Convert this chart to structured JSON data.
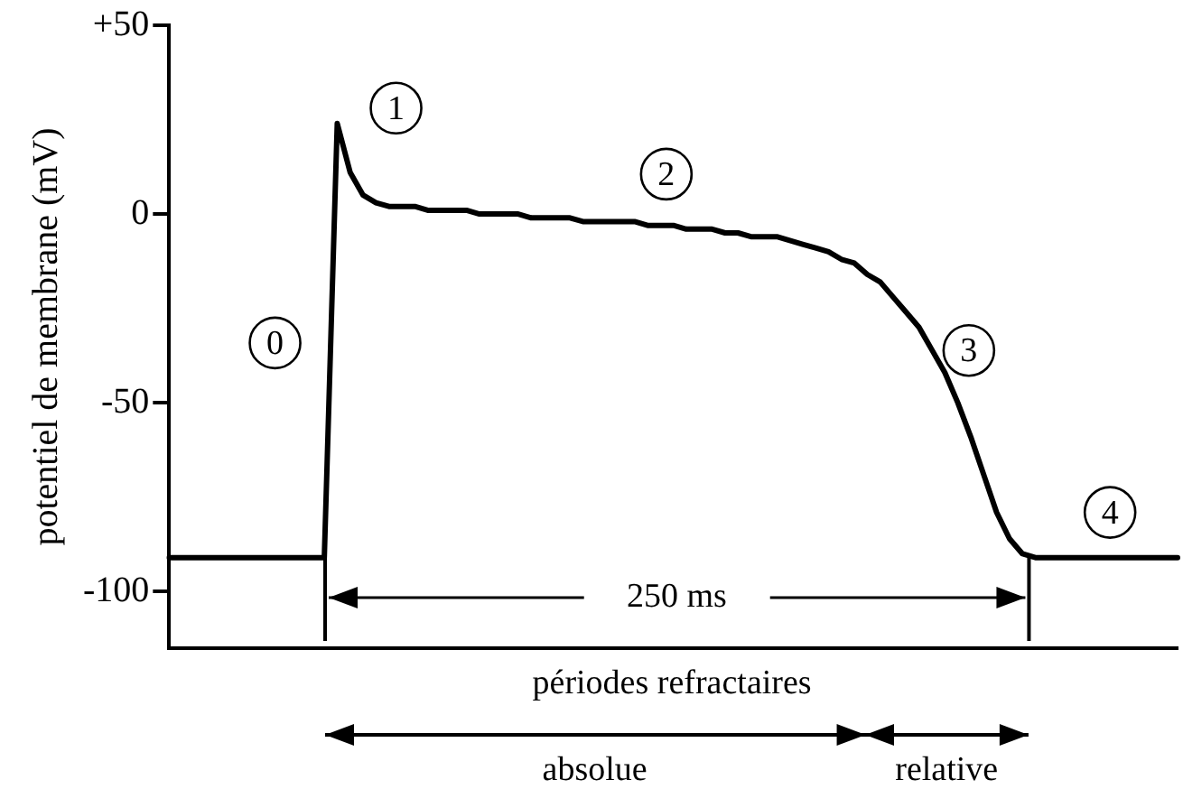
{
  "chart_data": {
    "type": "line",
    "ylabel": "potentiel de membrane (mV)",
    "categories": [
      null,
      null,
      null,
      null,
      null,
      null,
      null,
      null,
      null,
      null,
      null,
      null,
      null,
      null,
      null,
      null,
      null,
      null,
      null,
      null,
      null,
      null,
      null,
      null,
      null,
      null,
      null,
      null,
      null,
      null,
      null,
      null,
      null,
      null,
      null,
      null,
      null,
      null,
      null,
      null,
      null,
      null,
      null,
      null,
      null,
      null,
      null,
      null,
      null,
      null,
      null,
      null,
      null,
      null,
      null,
      null,
      null,
      null,
      null,
      null,
      null,
      null,
      null,
      null,
      null,
      null,
      null,
      null,
      null,
      null,
      null,
      null,
      null,
      null,
      null,
      null,
      null,
      null,
      null
    ],
    "series": [
      {
        "color": "#000000",
        "values": [
          -91,
          -91,
          -91,
          -91,
          -91,
          -91,
          -91,
          -91,
          -91,
          -91,
          -91,
          -91,
          -91,
          24,
          11,
          5,
          3,
          2,
          2,
          2,
          1,
          1,
          1,
          1,
          0,
          0,
          0,
          0,
          -1,
          -1,
          -1,
          -1,
          -2,
          -2,
          -2,
          -2,
          -2,
          -3,
          -3,
          -3,
          -4,
          -4,
          -4,
          -5,
          -5,
          -6,
          -6,
          -6,
          -7,
          -8,
          -9,
          -10,
          -12,
          -13,
          -16,
          -18,
          -22,
          -26,
          -30,
          -36,
          -42,
          -50,
          -59,
          -69,
          -79,
          -86,
          -90,
          -91,
          -91,
          -91,
          -91,
          -91,
          -91,
          -91,
          -91,
          -91,
          -91,
          -91,
          -91
        ]
      }
    ],
    "ylim": [
      -115,
      50
    ],
    "yticks": [
      {
        "value": 50,
        "label": "+50"
      },
      0,
      -50,
      -100
    ],
    "tick_labels": "y",
    "grid": false,
    "legend": false,
    "annotations": [
      "0",
      "1",
      "2",
      "3",
      "4",
      "250 ms",
      "périodes refractaires",
      "absolue",
      "relative"
    ]
  }
}
